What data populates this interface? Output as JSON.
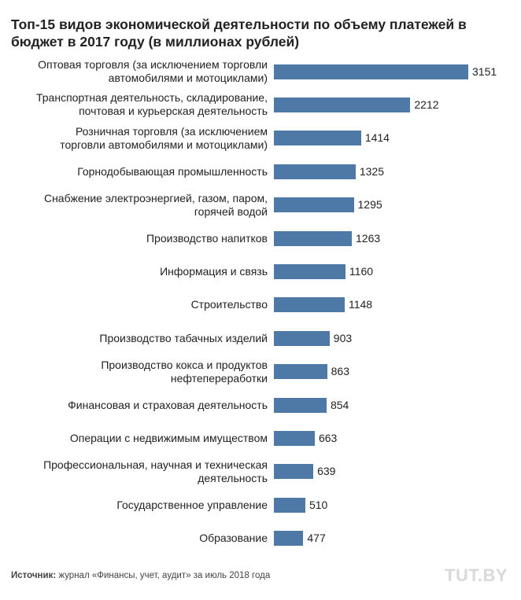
{
  "chart_data": {
    "type": "bar",
    "orientation": "horizontal",
    "title": "Топ-15 видов экономической деятельности по объему платежей в бюджет в 2017 году (в миллионах рублей)",
    "categories": [
      "Оптовая торговля (за исключением торговли\nавтомобилями и мотоциклами)",
      "Транспортная деятельность, складирование,\nпочтовая и курьерская деятельность",
      "Розничная торговля (за исключением\nторговли автомобилями и мотоциклами)",
      "Горнодобывающая промышленность",
      "Снабжение электроэнергией, газом, паром,\nгорячей водой",
      "Производство напитков",
      "Информация и связь",
      "Строительство",
      "Производство табачных изделий",
      "Производство кокса и продуктов\nнефтепереработки",
      "Финансовая и страховая деятельность",
      "Операции с недвижимым имуществом",
      "Профессиональная, научная и техническая\nдеятельность",
      "Государственное управление",
      "Образование"
    ],
    "values": [
      3151,
      2212,
      1414,
      1325,
      1295,
      1263,
      1160,
      1148,
      903,
      863,
      854,
      663,
      639,
      510,
      477
    ],
    "xlim": [
      0,
      3151
    ],
    "grid": false,
    "bar_color": "#4e79a7"
  },
  "source": {
    "label": "Источник:",
    "text": " журнал «Финансы, учет, аудит» за июль 2018 года"
  },
  "logo": "TUT.BY"
}
